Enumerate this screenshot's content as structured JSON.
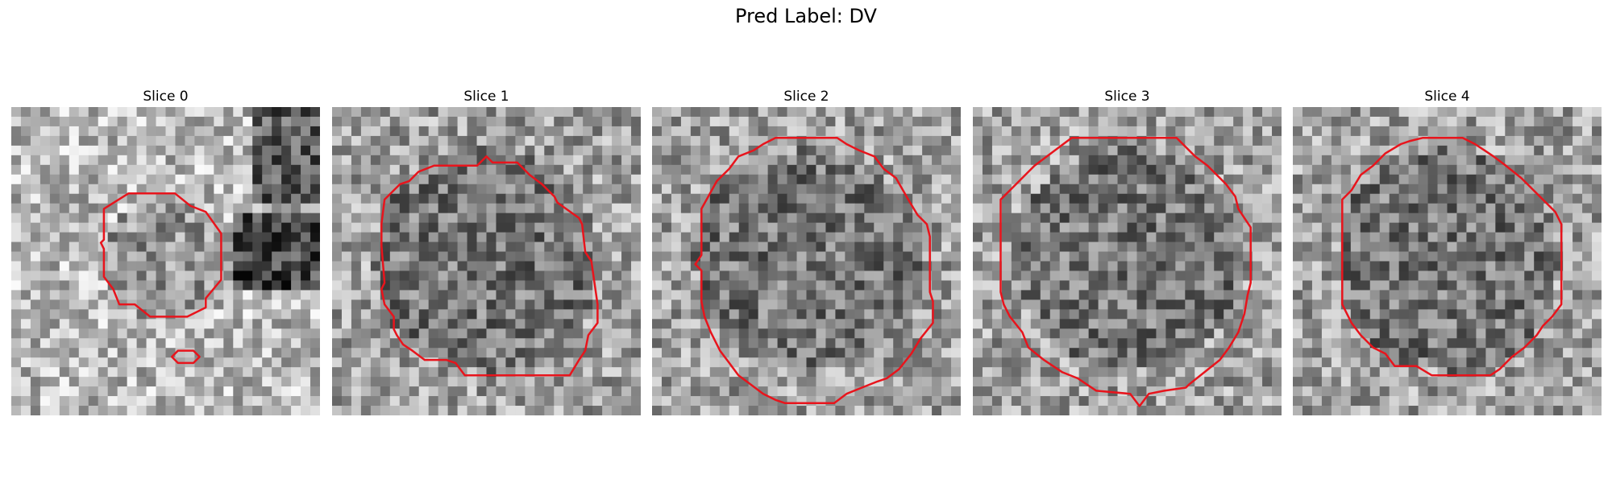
{
  "figure": {
    "title": "Pred Label: DV",
    "panels": [
      {
        "title": "Slice 0",
        "contours": [
          {
            "points": [
              [
                0.3,
                0.33
              ],
              [
                0.38,
                0.28
              ],
              [
                0.53,
                0.28
              ],
              [
                0.58,
                0.32
              ],
              [
                0.63,
                0.34
              ],
              [
                0.68,
                0.41
              ],
              [
                0.68,
                0.56
              ],
              [
                0.63,
                0.62
              ],
              [
                0.63,
                0.65
              ],
              [
                0.57,
                0.68
              ],
              [
                0.45,
                0.68
              ],
              [
                0.4,
                0.64
              ],
              [
                0.35,
                0.64
              ],
              [
                0.33,
                0.59
              ],
              [
                0.3,
                0.55
              ],
              [
                0.3,
                0.46
              ],
              [
                0.29,
                0.44
              ],
              [
                0.3,
                0.43
              ]
            ]
          },
          {
            "points": [
              [
                0.52,
                0.81
              ],
              [
                0.54,
                0.79
              ],
              [
                0.59,
                0.79
              ],
              [
                0.61,
                0.81
              ],
              [
                0.59,
                0.83
              ],
              [
                0.54,
                0.83
              ]
            ]
          }
        ]
      },
      {
        "title": "Slice 1",
        "contours": [
          {
            "points": [
              [
                0.17,
                0.3
              ],
              [
                0.22,
                0.25
              ],
              [
                0.25,
                0.24
              ],
              [
                0.28,
                0.21
              ],
              [
                0.33,
                0.19
              ],
              [
                0.47,
                0.19
              ],
              [
                0.5,
                0.16
              ],
              [
                0.52,
                0.18
              ],
              [
                0.6,
                0.18
              ],
              [
                0.64,
                0.22
              ],
              [
                0.68,
                0.25
              ],
              [
                0.72,
                0.29
              ],
              [
                0.73,
                0.31
              ],
              [
                0.8,
                0.36
              ],
              [
                0.81,
                0.38
              ],
              [
                0.82,
                0.47
              ],
              [
                0.84,
                0.5
              ],
              [
                0.86,
                0.64
              ],
              [
                0.86,
                0.7
              ],
              [
                0.83,
                0.74
              ],
              [
                0.82,
                0.79
              ],
              [
                0.8,
                0.82
              ],
              [
                0.77,
                0.87
              ],
              [
                0.43,
                0.87
              ],
              [
                0.4,
                0.83
              ],
              [
                0.37,
                0.82
              ],
              [
                0.3,
                0.82
              ],
              [
                0.26,
                0.79
              ],
              [
                0.23,
                0.77
              ],
              [
                0.21,
                0.74
              ],
              [
                0.2,
                0.72
              ],
              [
                0.2,
                0.68
              ],
              [
                0.17,
                0.64
              ],
              [
                0.16,
                0.59
              ],
              [
                0.17,
                0.57
              ],
              [
                0.16,
                0.45
              ],
              [
                0.16,
                0.38
              ]
            ]
          }
        ]
      },
      {
        "title": "Slice 2",
        "contours": [
          {
            "points": [
              [
                0.16,
                0.33
              ],
              [
                0.21,
                0.24
              ],
              [
                0.25,
                0.2
              ],
              [
                0.28,
                0.16
              ],
              [
                0.33,
                0.14
              ],
              [
                0.36,
                0.12
              ],
              [
                0.4,
                0.1
              ],
              [
                0.6,
                0.1
              ],
              [
                0.63,
                0.12
              ],
              [
                0.67,
                0.14
              ],
              [
                0.72,
                0.16
              ],
              [
                0.75,
                0.2
              ],
              [
                0.79,
                0.23
              ],
              [
                0.83,
                0.3
              ],
              [
                0.86,
                0.35
              ],
              [
                0.89,
                0.38
              ],
              [
                0.9,
                0.42
              ],
              [
                0.9,
                0.6
              ],
              [
                0.91,
                0.63
              ],
              [
                0.91,
                0.7
              ],
              [
                0.87,
                0.75
              ],
              [
                0.84,
                0.8
              ],
              [
                0.8,
                0.85
              ],
              [
                0.76,
                0.88
              ],
              [
                0.73,
                0.89
              ],
              [
                0.68,
                0.91
              ],
              [
                0.63,
                0.93
              ],
              [
                0.59,
                0.96
              ],
              [
                0.43,
                0.96
              ],
              [
                0.4,
                0.95
              ],
              [
                0.36,
                0.93
              ],
              [
                0.32,
                0.9
              ],
              [
                0.28,
                0.87
              ],
              [
                0.25,
                0.83
              ],
              [
                0.22,
                0.79
              ],
              [
                0.19,
                0.73
              ],
              [
                0.17,
                0.68
              ],
              [
                0.16,
                0.63
              ],
              [
                0.16,
                0.53
              ],
              [
                0.14,
                0.51
              ],
              [
                0.16,
                0.48
              ]
            ]
          }
        ]
      },
      {
        "title": "Slice 3",
        "contours": [
          {
            "points": [
              [
                0.09,
                0.3
              ],
              [
                0.13,
                0.26
              ],
              [
                0.17,
                0.22
              ],
              [
                0.2,
                0.19
              ],
              [
                0.24,
                0.16
              ],
              [
                0.28,
                0.13
              ],
              [
                0.32,
                0.1
              ],
              [
                0.66,
                0.1
              ],
              [
                0.69,
                0.13
              ],
              [
                0.72,
                0.16
              ],
              [
                0.76,
                0.19
              ],
              [
                0.79,
                0.22
              ],
              [
                0.82,
                0.25
              ],
              [
                0.85,
                0.29
              ],
              [
                0.86,
                0.33
              ],
              [
                0.88,
                0.36
              ],
              [
                0.9,
                0.39
              ],
              [
                0.9,
                0.57
              ],
              [
                0.89,
                0.61
              ],
              [
                0.88,
                0.67
              ],
              [
                0.86,
                0.73
              ],
              [
                0.83,
                0.78
              ],
              [
                0.8,
                0.82
              ],
              [
                0.75,
                0.86
              ],
              [
                0.7,
                0.9
              ],
              [
                0.69,
                0.91
              ],
              [
                0.62,
                0.92
              ],
              [
                0.57,
                0.93
              ],
              [
                0.54,
                0.97
              ],
              [
                0.51,
                0.93
              ],
              [
                0.4,
                0.92
              ],
              [
                0.34,
                0.88
              ],
              [
                0.29,
                0.86
              ],
              [
                0.23,
                0.82
              ],
              [
                0.18,
                0.78
              ],
              [
                0.16,
                0.73
              ],
              [
                0.12,
                0.68
              ],
              [
                0.1,
                0.64
              ],
              [
                0.09,
                0.6
              ]
            ]
          }
        ]
      },
      {
        "title": "Slice 4",
        "contours": [
          {
            "points": [
              [
                0.16,
                0.3
              ],
              [
                0.19,
                0.27
              ],
              [
                0.22,
                0.22
              ],
              [
                0.26,
                0.19
              ],
              [
                0.3,
                0.15
              ],
              [
                0.35,
                0.12
              ],
              [
                0.38,
                0.11
              ],
              [
                0.42,
                0.1
              ],
              [
                0.55,
                0.1
              ],
              [
                0.59,
                0.12
              ],
              [
                0.62,
                0.14
              ],
              [
                0.65,
                0.16
              ],
              [
                0.69,
                0.19
              ],
              [
                0.74,
                0.23
              ],
              [
                0.78,
                0.27
              ],
              [
                0.82,
                0.31
              ],
              [
                0.85,
                0.34
              ],
              [
                0.87,
                0.38
              ],
              [
                0.87,
                0.64
              ],
              [
                0.84,
                0.68
              ],
              [
                0.81,
                0.71
              ],
              [
                0.79,
                0.74
              ],
              [
                0.75,
                0.78
              ],
              [
                0.71,
                0.81
              ],
              [
                0.67,
                0.85
              ],
              [
                0.64,
                0.87
              ],
              [
                0.45,
                0.87
              ],
              [
                0.4,
                0.84
              ],
              [
                0.33,
                0.84
              ],
              [
                0.3,
                0.8
              ],
              [
                0.26,
                0.78
              ],
              [
                0.22,
                0.74
              ],
              [
                0.19,
                0.7
              ],
              [
                0.16,
                0.64
              ]
            ]
          }
        ]
      }
    ]
  }
}
